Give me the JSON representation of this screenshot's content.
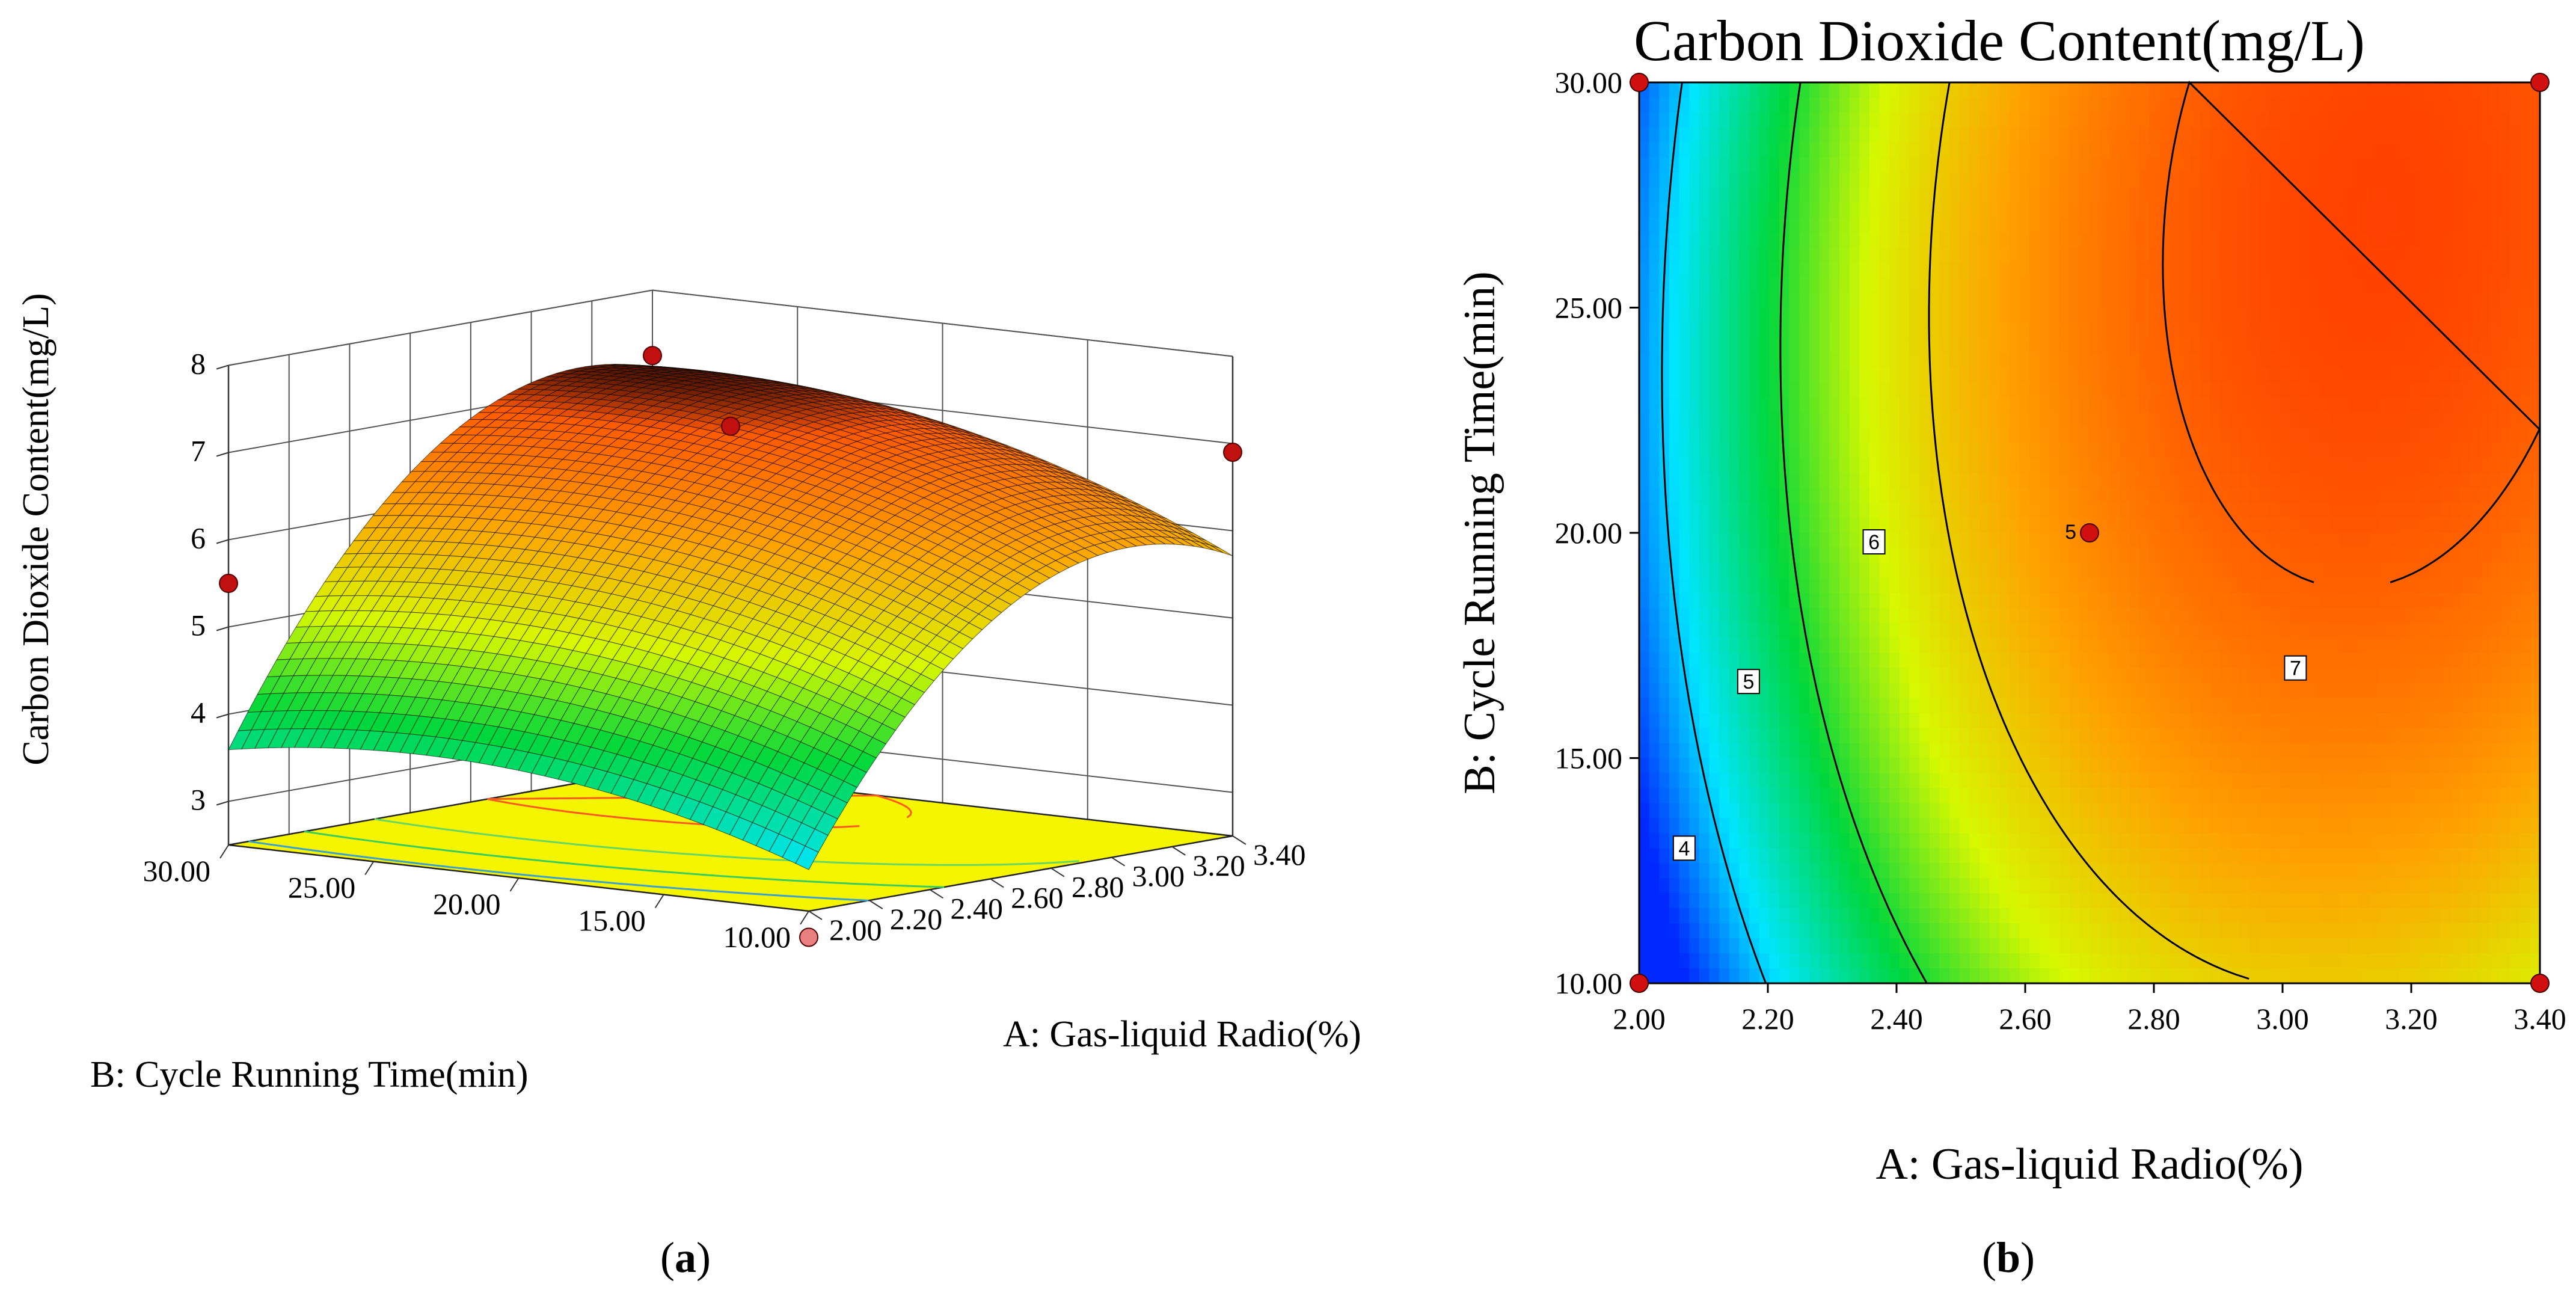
{
  "chart_data": [
    {
      "type": "surface3d",
      "panel_label": "a",
      "title": "",
      "xlabel": "A: Gas-liquid Radio(%)",
      "ylabel": "B: Cycle Running Time(min)",
      "zlabel": "Carbon Dioxide Content(mg/L)",
      "x_ticks": [
        "2.00",
        "2.20",
        "2.40",
        "2.60",
        "2.80",
        "3.00",
        "3.20",
        "3.40"
      ],
      "y_ticks": [
        "10.00",
        "15.00",
        "20.00",
        "25.00",
        "30.00"
      ],
      "z_ticks": [
        "3",
        "4",
        "5",
        "6",
        "7",
        "8"
      ],
      "xlim": [
        2.0,
        3.4
      ],
      "ylim": [
        10.0,
        30.0
      ],
      "zlim": [
        2.5,
        8.0
      ],
      "base_projection_color": "#f5f500",
      "design_points": [
        {
          "x": 2.0,
          "y": 10.0,
          "z": 2.2
        },
        {
          "x": 2.0,
          "y": 30.0,
          "z": 5.5
        },
        {
          "x": 3.4,
          "y": 10.0,
          "z": 6.9
        },
        {
          "x": 3.4,
          "y": 30.0,
          "z": 7.25
        },
        {
          "x": 2.7,
          "y": 20.0,
          "z": 7.25
        }
      ]
    },
    {
      "type": "contour",
      "panel_label": "b",
      "title": "Carbon Dioxide Content(mg/L)",
      "xlabel": "A: Gas-liquid Radio(%)",
      "ylabel": "B: Cycle Running Time(min)",
      "x_ticks": [
        "2.00",
        "2.20",
        "2.40",
        "2.60",
        "2.80",
        "3.00",
        "3.20",
        "3.40"
      ],
      "y_ticks": [
        "10.00",
        "15.00",
        "20.00",
        "25.00",
        "30.00"
      ],
      "xlim": [
        2.0,
        3.4
      ],
      "ylim": [
        10.0,
        30.0
      ],
      "contour_levels": [
        {
          "level": "4",
          "label": "4"
        },
        {
          "level": "5",
          "label": "5"
        },
        {
          "level": "6",
          "label": "6"
        },
        {
          "level": "7",
          "label": "7"
        }
      ],
      "center_point": {
        "x": 2.7,
        "y": 20.0,
        "label": "5"
      },
      "design_points": [
        {
          "x": 2.0,
          "y": 10.0
        },
        {
          "x": 2.0,
          "y": 30.0
        },
        {
          "x": 3.4,
          "y": 10.0
        },
        {
          "x": 3.4,
          "y": 30.0
        },
        {
          "x": 2.7,
          "y": 20.0
        }
      ],
      "color_low": "#0032ff",
      "color_high": "#ff4000"
    }
  ]
}
